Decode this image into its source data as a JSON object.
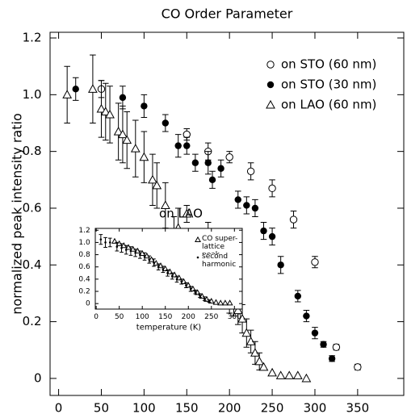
{
  "chart_data": [
    {
      "type": "scatter",
      "title": "CO Order Parameter",
      "xlabel": "temperature (K)",
      "ylabel": "normalized peak intensity ratio",
      "xlim": [
        -10,
        404
      ],
      "ylim": [
        -0.06,
        1.22
      ],
      "xticks": [
        0,
        50,
        100,
        150,
        200,
        250,
        300,
        350
      ],
      "yticks": [
        0,
        0.2,
        0.4,
        0.6,
        0.8,
        {
          "value": 1,
          "label": "1.0"
        },
        1.2
      ],
      "legend": "upper right",
      "series": [
        {
          "name": "on STO (60 nm)",
          "color": "#000000",
          "marker": "circle-open",
          "x": [
            50,
            150,
            175,
            200,
            225,
            250,
            275,
            300,
            325,
            350
          ],
          "values": [
            1.02,
            0.86,
            0.8,
            0.78,
            0.73,
            0.67,
            0.56,
            0.41,
            0.11,
            0.04
          ],
          "errors": [
            0.03,
            0.02,
            0.03,
            0.02,
            0.03,
            0.03,
            0.03,
            0.02,
            0.01,
            0.01
          ]
        },
        {
          "name": "on STO (30 nm)",
          "color": "#000000",
          "marker": "circle-filled",
          "x": [
            20,
            75,
            100,
            125,
            140,
            150,
            160,
            175,
            180,
            190,
            210,
            220,
            230,
            240,
            250,
            260,
            280,
            290,
            300,
            310,
            320
          ],
          "values": [
            1.02,
            0.99,
            0.96,
            0.9,
            0.82,
            0.82,
            0.76,
            0.76,
            0.7,
            0.74,
            0.63,
            0.61,
            0.6,
            0.52,
            0.5,
            0.4,
            0.29,
            0.22,
            0.16,
            0.12,
            0.07
          ],
          "errors": [
            0.04,
            0.04,
            0.04,
            0.03,
            0.04,
            0.03,
            0.03,
            0.04,
            0.03,
            0.03,
            0.03,
            0.03,
            0.03,
            0.03,
            0.03,
            0.03,
            0.02,
            0.02,
            0.02,
            0.01,
            0.01
          ]
        },
        {
          "name": "on LAO (60 nm)",
          "color": "#000000",
          "marker": "triangle-open",
          "x": [
            10,
            40,
            50,
            55,
            60,
            70,
            75,
            80,
            90,
            100,
            110,
            115,
            125,
            135,
            140,
            150,
            175,
            185,
            200,
            205,
            210,
            215,
            220,
            225,
            230,
            235,
            240,
            250,
            260,
            270,
            280,
            290
          ],
          "values": [
            1.0,
            1.02,
            0.95,
            0.94,
            0.93,
            0.87,
            0.86,
            0.84,
            0.81,
            0.78,
            0.7,
            0.68,
            0.61,
            0.5,
            0.53,
            0.58,
            0.48,
            0.44,
            0.29,
            0.27,
            0.24,
            0.21,
            0.16,
            0.13,
            0.09,
            0.06,
            0.04,
            0.02,
            0.01,
            0.01,
            0.01,
            0.0
          ],
          "errors": [
            0.1,
            0.12,
            0.1,
            0.1,
            0.1,
            0.1,
            0.1,
            0.1,
            0.1,
            0.09,
            0.09,
            0.08,
            0.08,
            0.07,
            0.07,
            0.03,
            0.07,
            0.06,
            0.06,
            0.05,
            0.05,
            0.05,
            0.05,
            0.04,
            0.04,
            0.03,
            0,
            0,
            0,
            0,
            0,
            0
          ]
        }
      ]
    },
    {
      "type": "scatter",
      "xlabel": "temperature (K)",
      "annotation": "on LAO",
      "xlim": [
        -2,
        317
      ],
      "ylim": [
        -0.09,
        1.23
      ],
      "xticks": [
        0,
        50,
        100,
        150,
        200,
        250,
        300
      ],
      "yticks": [
        0,
        0.2,
        0.4,
        0.6,
        0.8,
        {
          "value": 1,
          "label": "1.0"
        },
        1.2
      ],
      "legend": "upper right",
      "series": [
        {
          "name": "CO super-lattice peak",
          "color": "#000000",
          "marker": "triangle-open",
          "x": [
            40,
            50,
            60,
            70,
            80,
            90,
            100,
            110,
            120,
            130,
            140,
            150,
            160,
            170,
            180,
            190,
            200,
            210,
            220,
            230,
            240,
            250,
            260,
            270,
            280,
            290
          ],
          "values": [
            1.02,
            0.98,
            0.95,
            0.92,
            0.89,
            0.86,
            0.82,
            0.78,
            0.72,
            0.66,
            0.62,
            0.57,
            0.52,
            0.47,
            0.42,
            0.36,
            0.3,
            0.24,
            0.18,
            0.12,
            0.07,
            0.04,
            0.02,
            0.01,
            0.01,
            0.01
          ]
        },
        {
          "name": "second harmonic",
          "color": "#000000",
          "marker": "dot",
          "x": [
            10,
            20,
            30,
            45,
            55,
            65,
            75,
            85,
            95,
            105,
            115,
            125,
            135,
            145,
            155,
            165,
            175,
            185,
            195,
            205,
            215,
            225,
            235,
            245
          ],
          "values": [
            1.05,
            1.0,
            1.0,
            0.93,
            0.91,
            0.88,
            0.86,
            0.83,
            0.8,
            0.77,
            0.72,
            0.67,
            0.6,
            0.56,
            0.5,
            0.45,
            0.4,
            0.36,
            0.3,
            0.24,
            0.19,
            0.13,
            0.08,
            0.04
          ],
          "errors": [
            0.08,
            0.08,
            0.07,
            0.07,
            0.07,
            0.07,
            0.07,
            0.06,
            0.06,
            0.06,
            0.06,
            0.06,
            0.05,
            0.05,
            0.05,
            0.05,
            0.05,
            0.04,
            0.04,
            0.04,
            0.03,
            0.03,
            0.03,
            0.02
          ]
        }
      ]
    }
  ]
}
